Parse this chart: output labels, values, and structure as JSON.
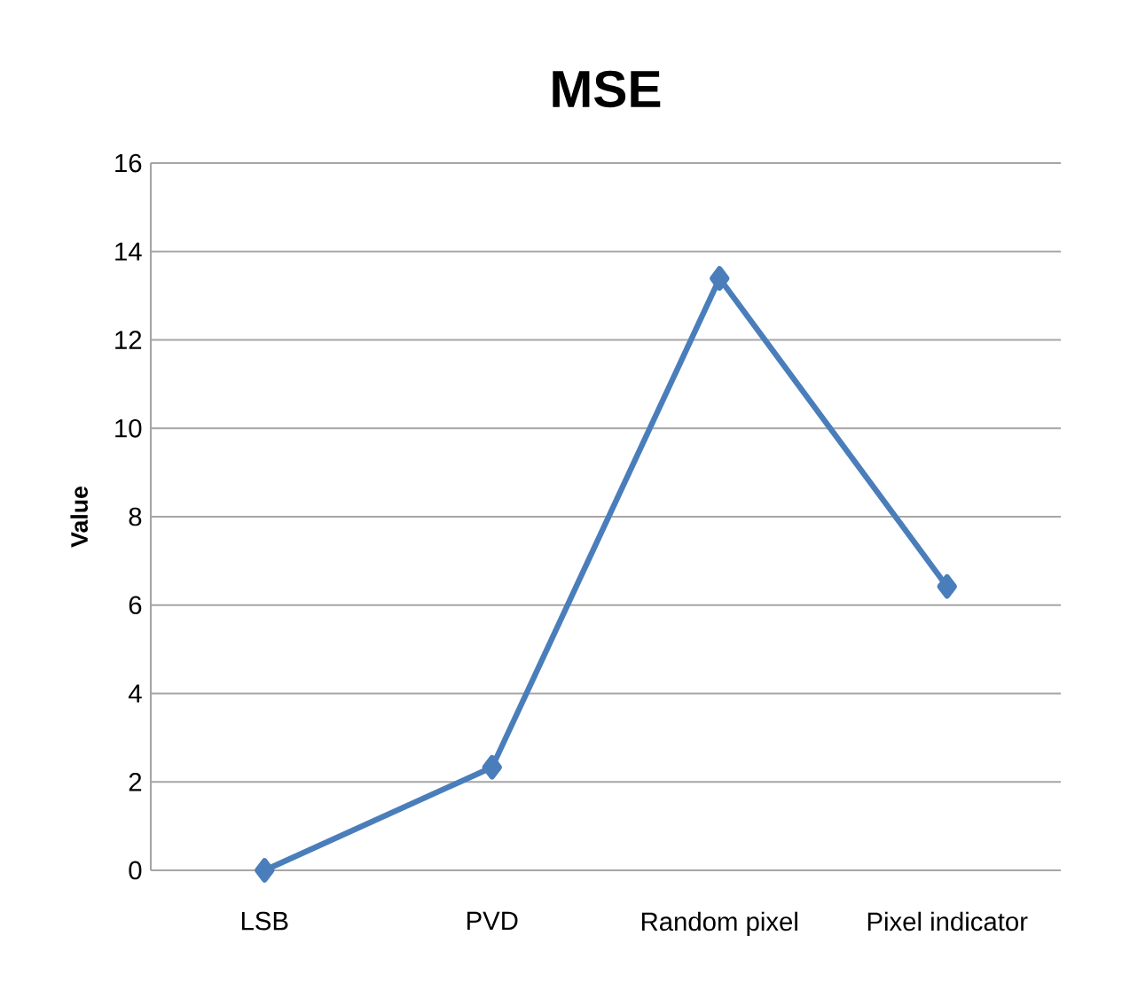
{
  "chart_data": {
    "type": "line",
    "title": "MSE",
    "ylabel": "Value",
    "categories": [
      "LSB",
      "PVD",
      "Random pixel",
      "Pixel indicator"
    ],
    "series": [
      {
        "color": "#4a7ebb",
        "values": [
          0,
          2.33,
          13.39,
          6.42
        ]
      }
    ],
    "ylim": [
      0,
      16
    ],
    "yticks": [
      0,
      2,
      4,
      6,
      8,
      10,
      12,
      14,
      16
    ],
    "grid": "y",
    "marker": "diamond",
    "line_style": "solid"
  }
}
